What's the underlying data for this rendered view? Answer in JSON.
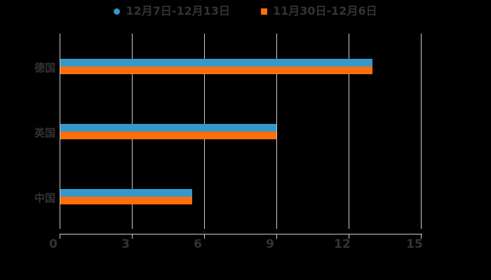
{
  "chart_data": {
    "type": "bar",
    "orientation": "horizontal",
    "title": "",
    "categories": [
      "德国",
      "英国",
      "中国"
    ],
    "series": [
      {
        "name": "12月7日-12月13日",
        "color": "#3498cb",
        "marker": "circle",
        "values": [
          13,
          9,
          5.5
        ]
      },
      {
        "name": "11月30日-12月6日",
        "color": "#ff6e0c",
        "marker": "square",
        "values": [
          13,
          9,
          5.5
        ]
      }
    ],
    "xlabel": "",
    "ylabel": "",
    "xlim": [
      0,
      15
    ],
    "xticks": [
      0,
      3,
      6,
      9,
      12,
      15
    ],
    "grid": true,
    "legend_position": "top-center",
    "background_color": "#000000",
    "text_color": "#333333",
    "grid_color": "#cccccc"
  }
}
